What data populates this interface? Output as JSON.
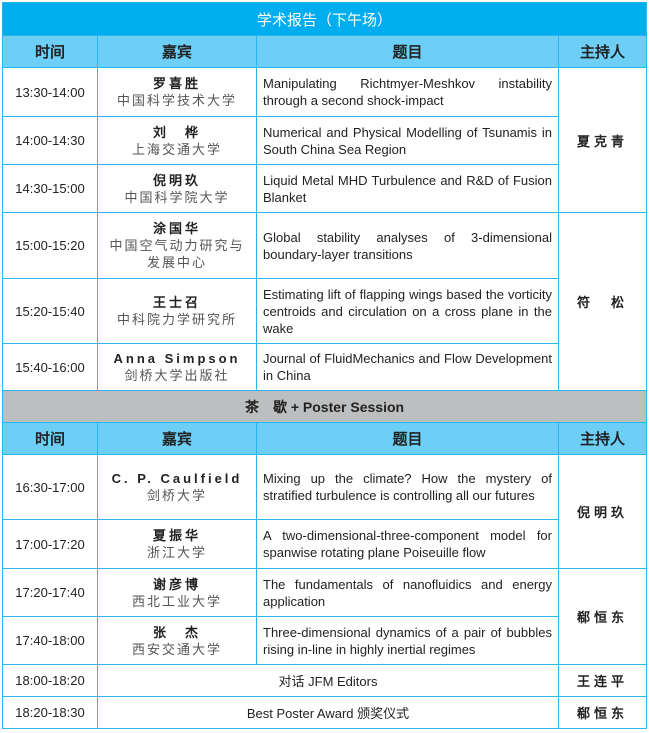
{
  "title": "学术报告（下午场）",
  "headers": [
    "时间",
    "嘉宾",
    "题目",
    "主持人"
  ],
  "session1": [
    {
      "time": "13:30-14:00",
      "name": "罗喜胜",
      "aff": "中国科学技术大学",
      "topic": "Manipulating Richtmyer-Meshkov instability through a second shock-impact",
      "host": "夏克青",
      "span": 3
    },
    {
      "time": "14:00-14:30",
      "name": "刘　桦",
      "aff": "上海交通大学",
      "topic": "Numerical and Physical Modelling of Tsunamis in South China Sea Region"
    },
    {
      "time": "14:30-15:00",
      "name": "倪明玖",
      "aff": "中国科学院大学",
      "topic": "Liquid Metal MHD Turbulence and R&D of Fusion Blanket"
    },
    {
      "time": "15:00-15:20",
      "name": "涂国华",
      "aff": "中国空气动力研究与发展中心",
      "topic": "Global stability analyses of 3-dimensional boundary-layer transitions",
      "host": "符　松",
      "span": 3
    },
    {
      "time": "15:20-15:40",
      "name": "王士召",
      "aff": "中科院力学研究所",
      "topic": "Estimating lift of flapping wings based the vorticity centroids and circulation on a cross plane in the wake"
    },
    {
      "time": "15:40-16:00",
      "name": "Anna Simpson",
      "aff": "剑桥大学出版社",
      "topic": "Journal of FluidMechanics and Flow Development in China"
    }
  ],
  "tea": "茶　歇 + Poster Session",
  "session2": [
    {
      "time": "16:30-17:00",
      "name": "C. P. Caulfield",
      "aff": "剑桥大学",
      "topic": "Mixing up the climate? How the mystery of stratified turbulence is controlling all our futures",
      "host": "倪明玖",
      "span": 2
    },
    {
      "time": "17:00-17:20",
      "name": "夏振华",
      "aff": "浙江大学",
      "topic": "A two-dimensional-three-component model for spanwise rotating plane Poiseuille flow"
    },
    {
      "time": "17:20-17:40",
      "name": "谢彦博",
      "aff": "西北工业大学",
      "topic": "The fundamentals of nanofluidics and energy application",
      "host": "郗恒东",
      "span": 2
    },
    {
      "time": "17:40-18:00",
      "name": "张　杰",
      "aff": "西安交通大学",
      "topic": "Three-dimensional dynamics of a pair of bubbles rising in-line in highly inertial regimes"
    },
    {
      "time": "18:00-18:20",
      "merged": "对话 JFM Editors",
      "host": "王连平",
      "span": 1
    },
    {
      "time": "18:20-18:30",
      "merged": "Best Poster Award 颁奖仪式",
      "host": "郗恒东",
      "span": 1
    }
  ],
  "colors": {
    "title_bg": "#00aeef",
    "header_bg": "#6dcff6",
    "border": "#29b6f0",
    "tea_bg": "#bcbec0"
  }
}
